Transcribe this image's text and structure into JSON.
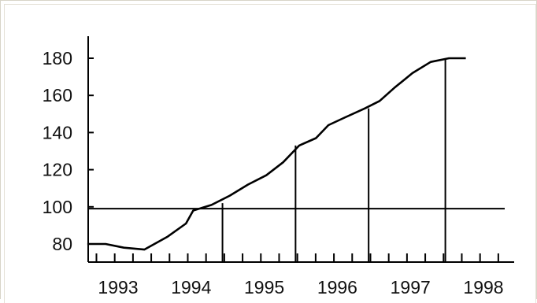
{
  "chart_data": {
    "type": "line",
    "title": "",
    "xlabel": "",
    "ylabel": "",
    "ylim": [
      72,
      188
    ],
    "xlim": [
      1992.6,
      1998.3
    ],
    "grid": false,
    "legend": "none",
    "x_ticks": [
      1993,
      1994,
      1995,
      1996,
      1997,
      1998
    ],
    "y_ticks": [
      80,
      100,
      120,
      140,
      160,
      180
    ],
    "series": [
      {
        "x": [
          1992.6,
          1992.85,
          1993.1,
          1993.38,
          1993.7,
          1993.95,
          1994.05,
          1994.3,
          1994.55,
          1994.8,
          1995.05,
          1995.28,
          1995.5,
          1995.73,
          1995.9,
          1996.12,
          1996.4,
          1996.6,
          1996.8,
          1997.05,
          1997.3,
          1997.55,
          1997.78
        ],
        "values": [
          80,
          80,
          78,
          77,
          84,
          91,
          98,
          101,
          106,
          112,
          117,
          124,
          133,
          137,
          144,
          148,
          153,
          157,
          164,
          172,
          178,
          180,
          180
        ]
      }
    ],
    "reference_line": {
      "y": 99
    },
    "drop_lines": [
      {
        "x": 1994.45,
        "y": 102
      },
      {
        "x": 1995.45,
        "y": 133
      },
      {
        "x": 1996.45,
        "y": 153
      },
      {
        "x": 1997.5,
        "y": 180
      }
    ],
    "minor_ticks_per_year": 4,
    "color": "#000000"
  }
}
